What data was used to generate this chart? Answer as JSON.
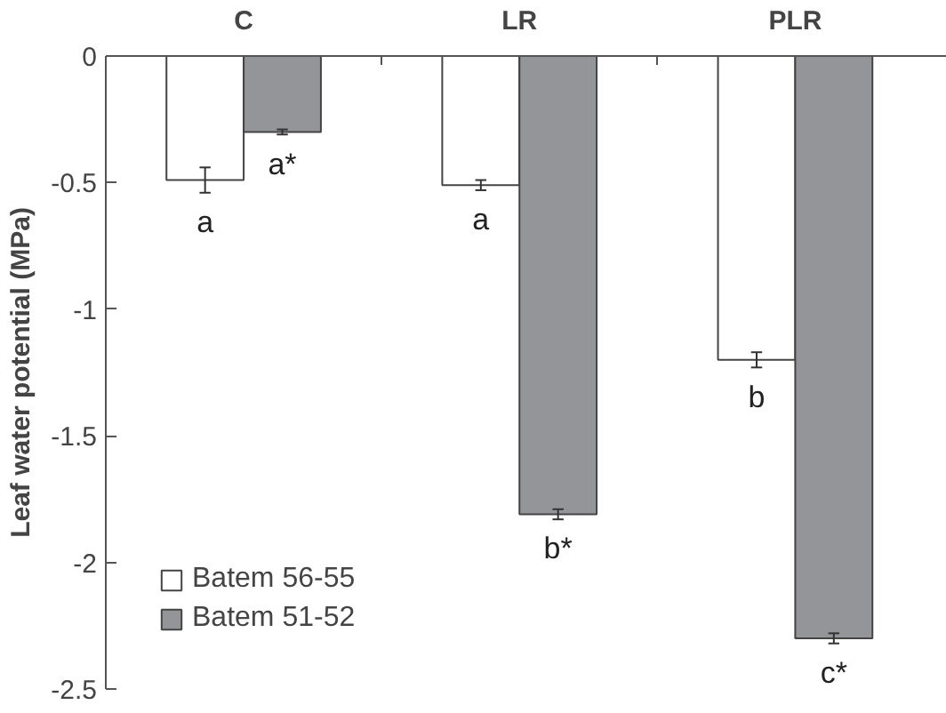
{
  "chart_data": {
    "type": "bar",
    "ylabel": "Leaf water potential (MPa)",
    "categories": [
      "C",
      "LR",
      "PLR"
    ],
    "series": [
      {
        "name": "Batem 56-55",
        "color": "#ffffff",
        "values": [
          -0.49,
          -0.51,
          -1.2
        ],
        "errors": [
          0.05,
          0.02,
          0.03
        ]
      },
      {
        "name": "Batem 51-52",
        "color": "#939598",
        "values": [
          -0.3,
          -1.81,
          -2.3
        ],
        "errors": [
          0.01,
          0.02,
          0.02
        ]
      }
    ],
    "annotations": [
      "a",
      "a*",
      "a",
      "b*",
      "b",
      "c*"
    ],
    "ylim": [
      -2.5,
      0
    ],
    "yticks": [
      0,
      -0.5,
      -1,
      -1.5,
      -2,
      -2.5
    ],
    "grid": false,
    "legend": "bottom left"
  }
}
